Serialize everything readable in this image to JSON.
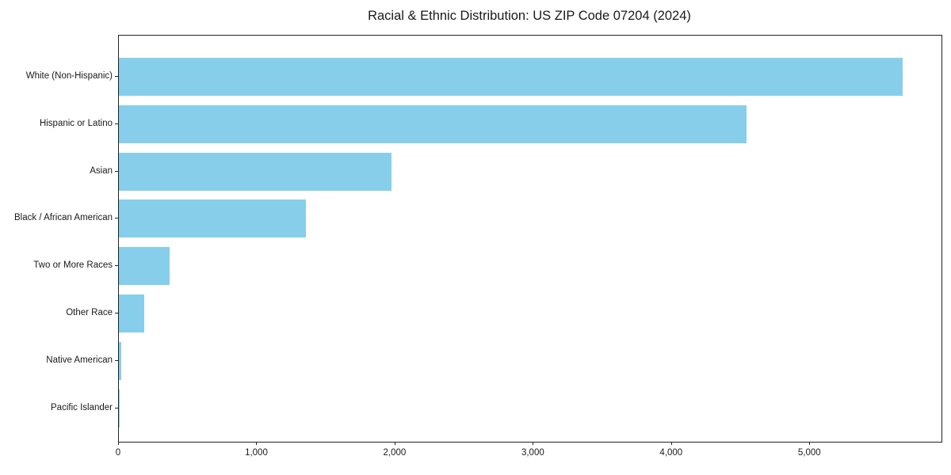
{
  "title": "Racial & Ethnic Distribution: US ZIP Code 07204 (2024)",
  "chart_data": {
    "type": "bar",
    "orientation": "horizontal",
    "title": "Racial & Ethnic Distribution: US ZIP Code 07204 (2024)",
    "xlabel": "",
    "ylabel": "",
    "categories": [
      "White (Non-Hispanic)",
      "Hispanic or Latino",
      "Asian",
      "Black / African American",
      "Two or More Races",
      "Other Race",
      "Native American",
      "Pacific Islander"
    ],
    "values": [
      5670,
      4540,
      1970,
      1350,
      365,
      185,
      15,
      5
    ],
    "xlim": [
      0,
      5950
    ],
    "x_ticks": [
      0,
      1000,
      2000,
      3000,
      4000,
      5000
    ],
    "x_tick_labels": [
      "0",
      "1,000",
      "2,000",
      "3,000",
      "4,000",
      "5,000"
    ],
    "grid": false,
    "legend": "none",
    "bar_color": "#87CEEB"
  },
  "colors": {
    "bar": "#87CEEB",
    "spine": "#222222",
    "text": "#1a1a1a",
    "background": "#ffffff"
  }
}
